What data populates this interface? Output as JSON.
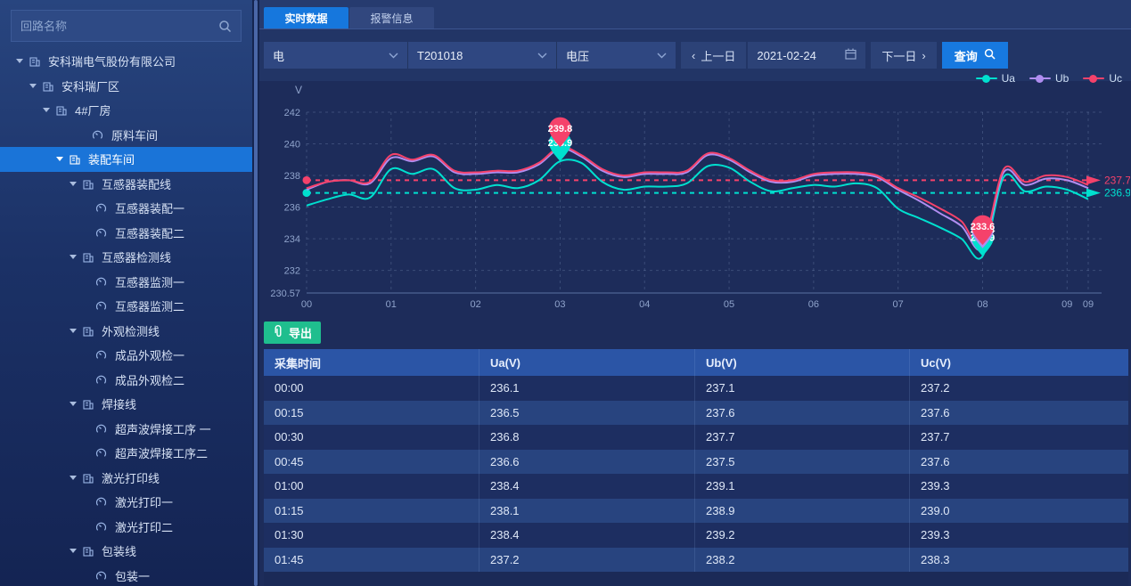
{
  "sidebar": {
    "search": {
      "placeholder": "回路名称"
    },
    "tree": [
      {
        "label": "安科瑞电气股份有限公司",
        "depth": 0,
        "type": "org",
        "expanded": true,
        "selected": false
      },
      {
        "label": "安科瑞厂区",
        "depth": 1,
        "type": "org",
        "expanded": true,
        "selected": false
      },
      {
        "label": "4#厂房",
        "depth": 2,
        "type": "org",
        "expanded": true,
        "selected": false
      },
      {
        "label": "原料车间",
        "depth": 3,
        "type": "meter",
        "leafExtra": 26,
        "selected": false
      },
      {
        "label": "装配车间",
        "depth": 3,
        "type": "org",
        "expanded": true,
        "selected": true
      },
      {
        "label": "互感器装配线",
        "depth": 4,
        "type": "org",
        "expanded": true,
        "selected": false
      },
      {
        "label": "互感器装配一",
        "depth": 5,
        "type": "meter",
        "selected": false
      },
      {
        "label": "互感器装配二",
        "depth": 5,
        "type": "meter",
        "selected": false
      },
      {
        "label": "互感器检测线",
        "depth": 4,
        "type": "org",
        "expanded": true,
        "selected": false
      },
      {
        "label": "互感器监测一",
        "depth": 5,
        "type": "meter",
        "selected": false
      },
      {
        "label": "互感器监测二",
        "depth": 5,
        "type": "meter",
        "selected": false
      },
      {
        "label": "外观检测线",
        "depth": 4,
        "type": "org",
        "expanded": true,
        "selected": false
      },
      {
        "label": "成品外观检一",
        "depth": 5,
        "type": "meter",
        "selected": false
      },
      {
        "label": "成品外观检二",
        "depth": 5,
        "type": "meter",
        "selected": false
      },
      {
        "label": "焊接线",
        "depth": 4,
        "type": "org",
        "expanded": true,
        "selected": false
      },
      {
        "label": "超声波焊接工序 一",
        "depth": 5,
        "type": "meter",
        "selected": false
      },
      {
        "label": "超声波焊接工序二",
        "depth": 5,
        "type": "meter",
        "selected": false
      },
      {
        "label": "激光打印线",
        "depth": 4,
        "type": "org",
        "expanded": true,
        "selected": false
      },
      {
        "label": "激光打印一",
        "depth": 5,
        "type": "meter",
        "selected": false
      },
      {
        "label": "激光打印二",
        "depth": 5,
        "type": "meter",
        "selected": false
      },
      {
        "label": "包装线",
        "depth": 4,
        "type": "org",
        "expanded": true,
        "selected": false
      },
      {
        "label": "包装一",
        "depth": 5,
        "type": "meter",
        "selected": false
      }
    ]
  },
  "tabs": [
    {
      "label": "实时数据",
      "active": true
    },
    {
      "label": "报警信息",
      "active": false
    }
  ],
  "filters": {
    "selects": [
      {
        "value": "电"
      },
      {
        "value": "T201018"
      },
      {
        "value": "电压"
      }
    ],
    "prev_label": "上一日",
    "date": "2021-02-24",
    "next_label": "下一日",
    "query_label": "查询"
  },
  "export_label": "导出",
  "table": {
    "headers": [
      "采集时间",
      "Ua(V)",
      "Ub(V)",
      "Uc(V)"
    ],
    "rows": [
      [
        "00:00",
        "236.1",
        "237.1",
        "237.2"
      ],
      [
        "00:15",
        "236.5",
        "237.6",
        "237.6"
      ],
      [
        "00:30",
        "236.8",
        "237.7",
        "237.7"
      ],
      [
        "00:45",
        "236.6",
        "237.5",
        "237.6"
      ],
      [
        "01:00",
        "238.4",
        "239.1",
        "239.3"
      ],
      [
        "01:15",
        "238.1",
        "238.9",
        "239.0"
      ],
      [
        "01:30",
        "238.4",
        "239.2",
        "239.3"
      ],
      [
        "01:45",
        "237.2",
        "238.2",
        "238.3"
      ]
    ]
  },
  "chart_data": {
    "type": "line",
    "ylabel": "V",
    "ymin": 230.57,
    "ymax": 242,
    "yticks": [
      242,
      240,
      238,
      236,
      234,
      232
    ],
    "ymin_label": "230.57",
    "xticks": [
      "00",
      "01",
      "02",
      "03",
      "04",
      "05",
      "06",
      "07",
      "08",
      "09"
    ],
    "x_end_label": "09",
    "x": [
      "00:00",
      "00:15",
      "00:30",
      "00:45",
      "01:00",
      "01:15",
      "01:30",
      "01:45",
      "02:00",
      "02:15",
      "02:30",
      "02:45",
      "03:00",
      "03:15",
      "03:30",
      "03:45",
      "04:00",
      "04:15",
      "04:30",
      "04:45",
      "05:00",
      "05:15",
      "05:30",
      "05:45",
      "06:00",
      "06:15",
      "06:30",
      "06:45",
      "07:00",
      "07:15",
      "07:30",
      "07:45",
      "08:00",
      "08:15",
      "08:30",
      "08:45",
      "09:00",
      "09:15"
    ],
    "series": [
      {
        "name": "Ua",
        "color": "#00e0cf",
        "values": [
          236.1,
          236.5,
          236.8,
          236.6,
          238.4,
          238.1,
          238.4,
          237.2,
          237.1,
          237.4,
          237.2,
          237.7,
          238.9,
          238.8,
          237.6,
          237.1,
          237.3,
          237.3,
          237.5,
          238.6,
          238.5,
          237.6,
          237.0,
          237.2,
          237.4,
          237.3,
          237.5,
          237.2,
          235.9,
          235.3,
          234.7,
          234.0,
          232.9,
          237.9,
          237.0,
          237.3,
          237.1,
          236.5
        ]
      },
      {
        "name": "Ub",
        "color": "#b08df0",
        "values": [
          237.1,
          237.6,
          237.7,
          237.5,
          239.1,
          238.9,
          239.2,
          238.2,
          238.1,
          238.2,
          238.2,
          238.7,
          239.7,
          239.2,
          238.3,
          237.9,
          238.1,
          238.1,
          238.2,
          239.3,
          239.0,
          238.2,
          237.6,
          237.6,
          238.0,
          238.1,
          238.1,
          237.9,
          237.1,
          236.4,
          235.6,
          234.8,
          233.4,
          238.2,
          237.4,
          237.8,
          237.7,
          237.2
        ]
      },
      {
        "name": "Uc",
        "color": "#f5426b",
        "values": [
          237.2,
          237.6,
          237.7,
          237.6,
          239.3,
          239.0,
          239.3,
          238.3,
          238.2,
          238.3,
          238.3,
          238.8,
          239.8,
          239.3,
          238.4,
          238.0,
          238.2,
          238.2,
          238.3,
          239.4,
          239.1,
          238.3,
          237.7,
          237.7,
          238.1,
          238.2,
          238.2,
          238.0,
          237.2,
          236.6,
          235.9,
          235.1,
          233.6,
          238.4,
          237.6,
          238.0,
          237.9,
          237.4
        ]
      }
    ],
    "avg_lines": [
      {
        "series": "Uc",
        "value": 237.7,
        "label": "237.7",
        "color": "#f5426b"
      },
      {
        "series": "Ua",
        "value": 236.9,
        "label": "236.9",
        "color": "#00e0cf"
      }
    ],
    "markers": [
      {
        "series": "Ua",
        "type": "min",
        "time": "08:00",
        "value": 232.9,
        "label": "232.9",
        "color": "#00e0cf"
      },
      {
        "series": "Ub",
        "type": "min",
        "time": "08:00",
        "value": 233.4,
        "label": "233.4",
        "color": "#b08df0"
      },
      {
        "series": "Uc",
        "type": "min",
        "time": "08:00",
        "value": 233.6,
        "label": "233.6",
        "color": "#f5426b"
      },
      {
        "series": "Ua",
        "type": "max",
        "time": "03:00",
        "value": 238.9,
        "label": "238.9",
        "color": "#00e0cf"
      },
      {
        "series": "Uc",
        "type": "max",
        "time": "03:00",
        "value": 239.8,
        "label": "239.8",
        "color": "#f5426b"
      }
    ],
    "legend_position": "top-right",
    "grid": true
  },
  "colors": {
    "accent_blue": "#1677dd",
    "sidebar_selected": "#1a74d8",
    "export_green": "#1fbe8e",
    "table_header": "#2b55a6",
    "series_ua": "#00e0cf",
    "series_ub": "#b08df0",
    "series_uc": "#f5426b"
  }
}
